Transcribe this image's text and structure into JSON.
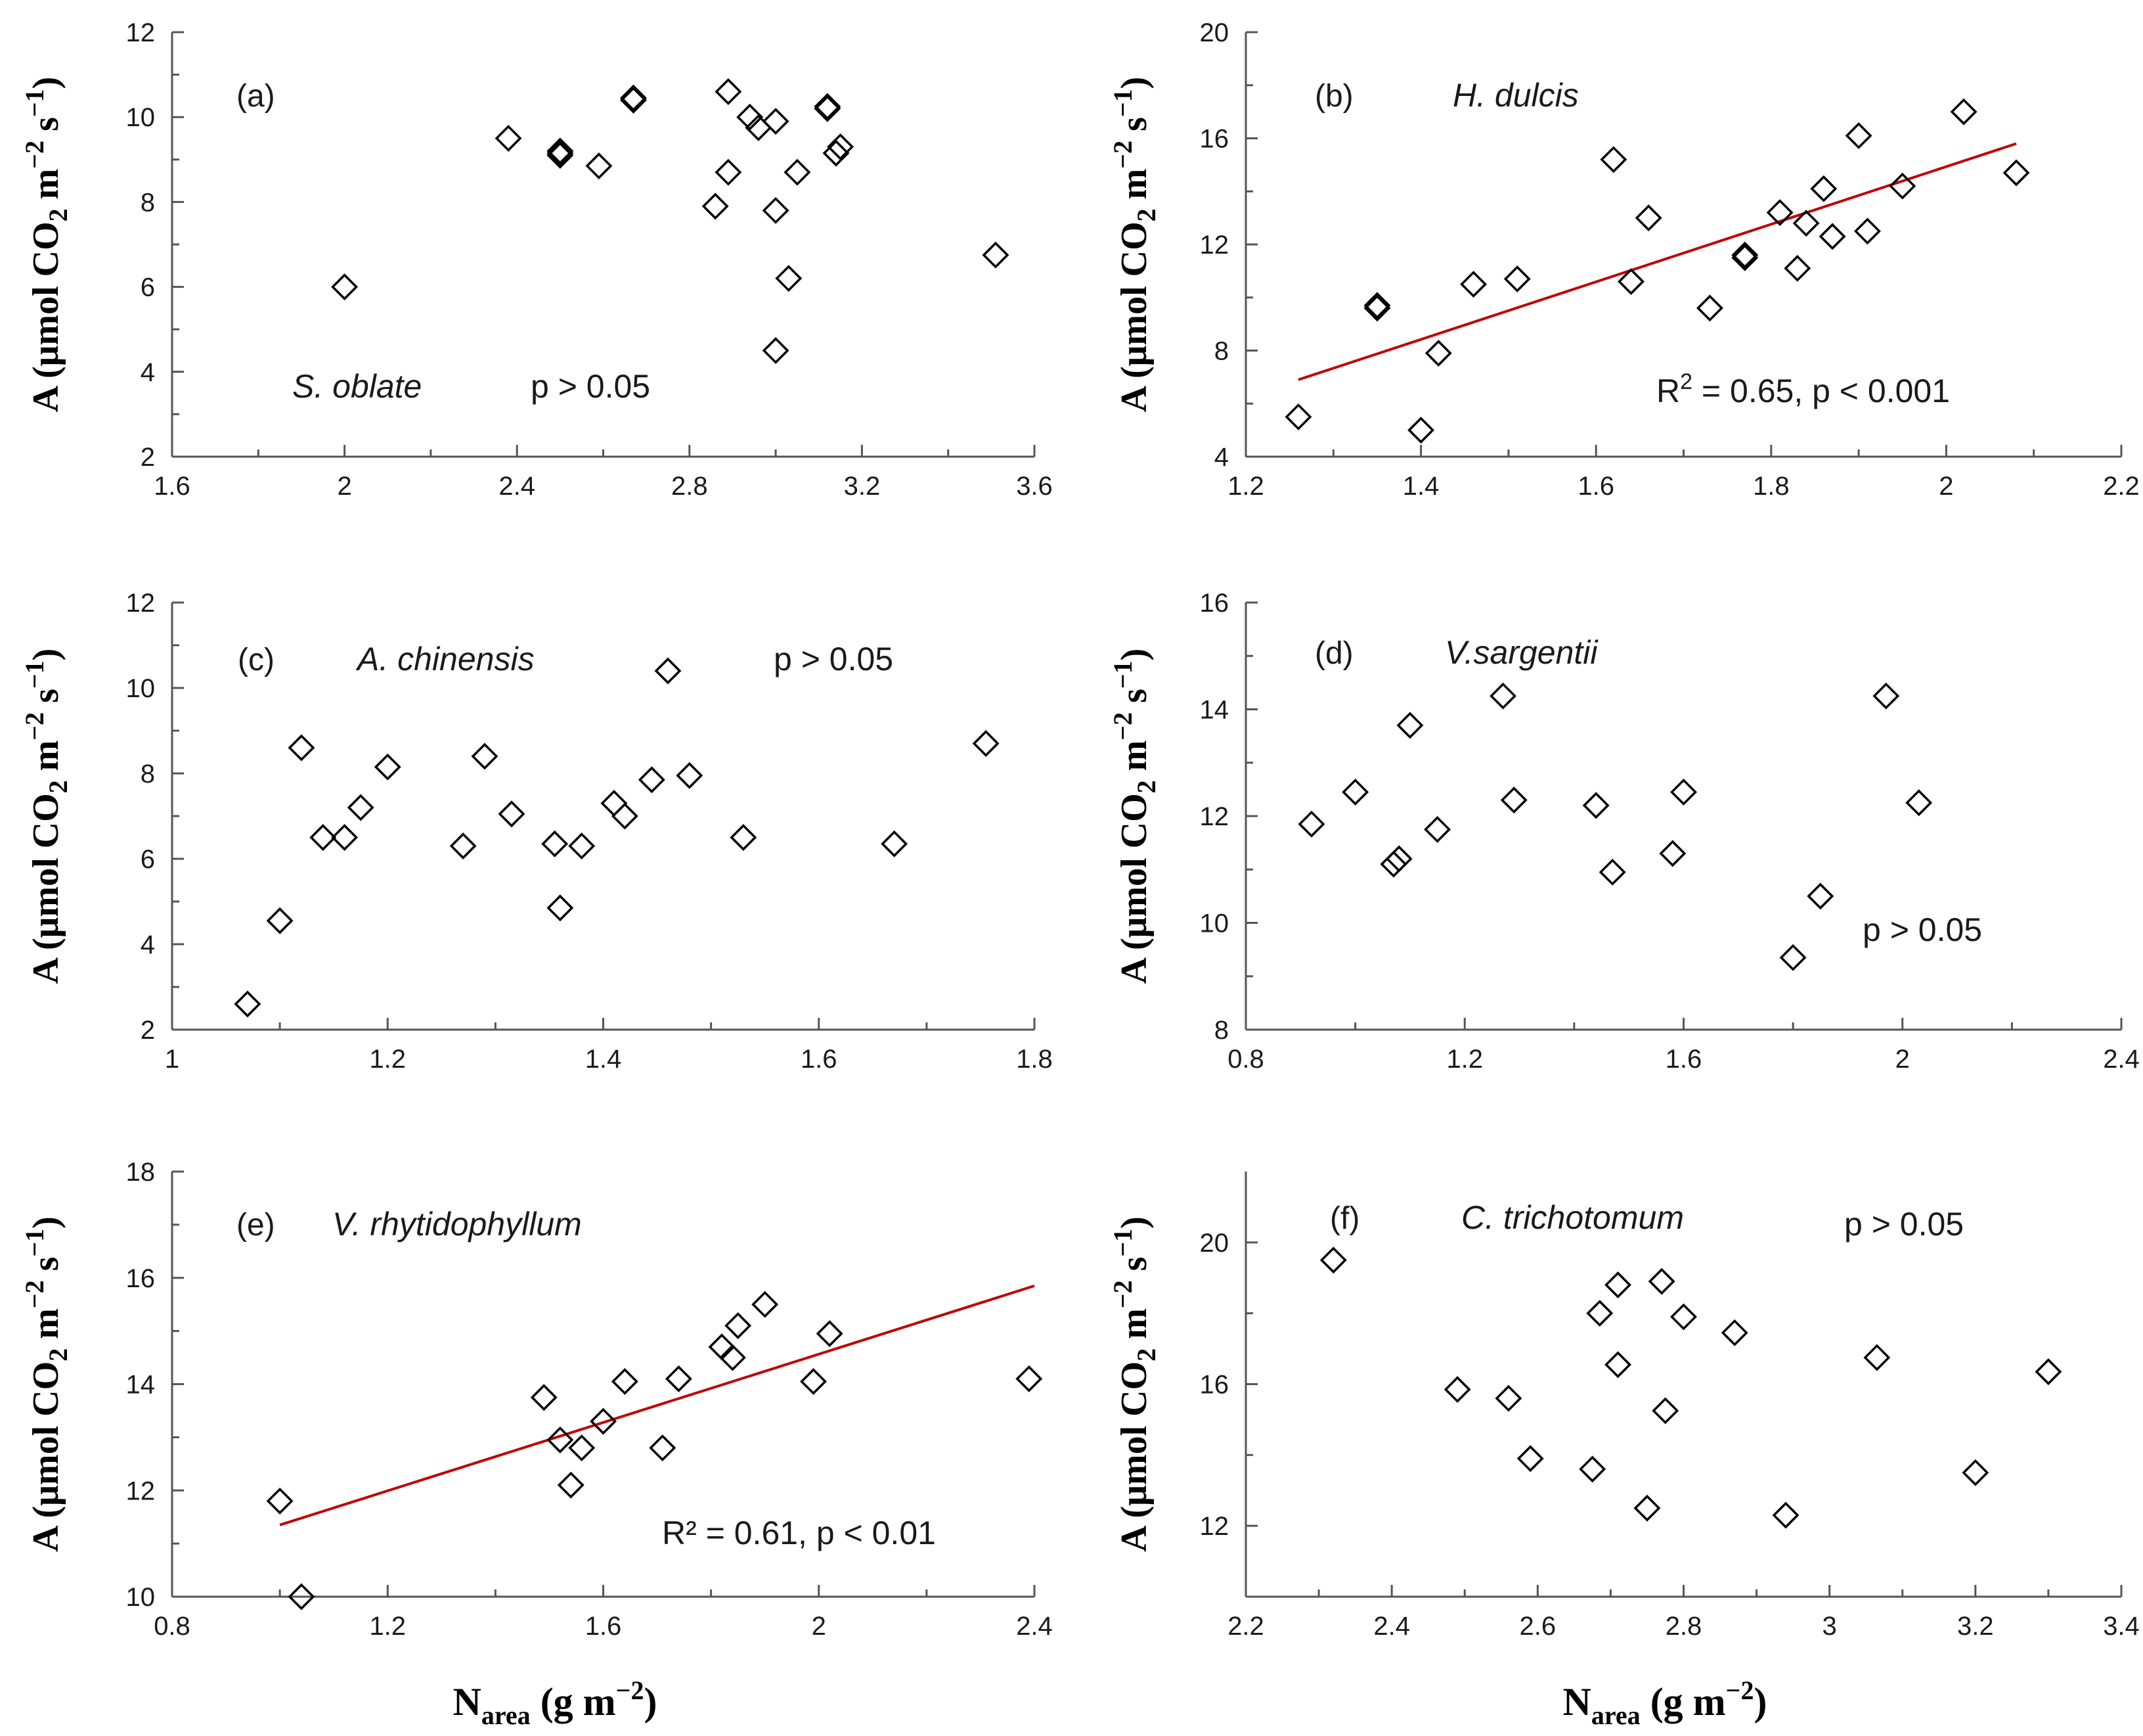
{
  "colors": {
    "axis": "#555555",
    "marker": "#000000",
    "fit_line": "#c00000",
    "text": "#1a1a1a"
  },
  "y_axis_label": {
    "prefix": "A (μmol CO",
    "sub": "2",
    "mid1": " m",
    "sup1": "−2",
    "mid2": " s",
    "sup2": "−1",
    "suffix": ")"
  },
  "x_axis_label": {
    "main": "N",
    "sub": "area",
    "unit": " (g m",
    "sup": "−2",
    "end": ")"
  },
  "chart_data": [
    {
      "panel": "(a)",
      "species": "S. oblate",
      "stats": "p > 0.05",
      "stats_html": null,
      "type": "scatter",
      "xlim": [
        1.6,
        3.6
      ],
      "ylim": [
        2,
        12
      ],
      "xticks": [
        1.6,
        2.0,
        2.4,
        2.8,
        3.2,
        3.6
      ],
      "xtick_labels": [
        "1.6",
        "2",
        "2.4",
        "2.8",
        "3.2",
        "3.6"
      ],
      "yticks": [
        2,
        4,
        6,
        8,
        10,
        12
      ],
      "ytick_labels": [
        "2",
        "4",
        "6",
        "8",
        "10",
        "12"
      ],
      "points": [
        [
          2.0,
          6.0
        ],
        [
          2.38,
          9.5
        ],
        [
          2.5,
          9.2
        ],
        [
          2.5,
          9.15
        ],
        [
          2.5,
          9.1
        ],
        [
          2.59,
          8.85
        ],
        [
          2.67,
          10.45
        ],
        [
          2.67,
          10.4
        ],
        [
          2.86,
          7.9
        ],
        [
          2.89,
          10.6
        ],
        [
          2.89,
          8.7
        ],
        [
          2.94,
          10.0
        ],
        [
          2.96,
          9.75
        ],
        [
          3.0,
          9.9
        ],
        [
          3.0,
          7.8
        ],
        [
          3.0,
          4.5
        ],
        [
          3.03,
          6.2
        ],
        [
          3.05,
          8.7
        ],
        [
          3.12,
          10.25
        ],
        [
          3.12,
          10.2
        ],
        [
          3.14,
          9.15
        ],
        [
          3.15,
          9.3
        ],
        [
          3.51,
          6.75
        ]
      ],
      "fit": null
    },
    {
      "panel": "(b)",
      "species": "H. dulcis",
      "stats": "R2 = 0.65, p < 0.001",
      "type": "scatter",
      "xlim": [
        1.2,
        2.2
      ],
      "ylim": [
        4,
        20
      ],
      "xticks": [
        1.2,
        1.4,
        1.6,
        1.8,
        2.0,
        2.2
      ],
      "xtick_labels": [
        "1.2",
        "1.4",
        "1.6",
        "1.8",
        "2",
        "2.2"
      ],
      "yticks": [
        4,
        8,
        12,
        16,
        20
      ],
      "ytick_labels": [
        "4",
        "8",
        "12",
        "16",
        "20"
      ],
      "points": [
        [
          1.26,
          5.5
        ],
        [
          1.35,
          9.7
        ],
        [
          1.35,
          9.6
        ],
        [
          1.4,
          5.0
        ],
        [
          1.42,
          7.9
        ],
        [
          1.46,
          10.5
        ],
        [
          1.51,
          10.7
        ],
        [
          1.62,
          15.2
        ],
        [
          1.64,
          10.6
        ],
        [
          1.66,
          13.0
        ],
        [
          1.73,
          9.6
        ],
        [
          1.77,
          11.6
        ],
        [
          1.77,
          11.5
        ],
        [
          1.81,
          13.2
        ],
        [
          1.83,
          11.1
        ],
        [
          1.84,
          12.8
        ],
        [
          1.86,
          14.1
        ],
        [
          1.87,
          12.3
        ],
        [
          1.9,
          16.1
        ],
        [
          1.91,
          12.5
        ],
        [
          1.95,
          14.2
        ],
        [
          2.02,
          17.0
        ],
        [
          2.08,
          14.7
        ]
      ],
      "fit": {
        "x": [
          1.26,
          2.08
        ],
        "y": [
          6.9,
          15.8
        ]
      }
    },
    {
      "panel": "(c)",
      "species": "A. chinensis",
      "stats": "p > 0.05",
      "type": "scatter",
      "xlim": [
        1.0,
        1.8
      ],
      "ylim": [
        2,
        12
      ],
      "xticks": [
        1.0,
        1.2,
        1.4,
        1.6,
        1.8
      ],
      "xtick_labels": [
        "1",
        "1.2",
        "1.4",
        "1.6",
        "1.8"
      ],
      "yticks": [
        2,
        4,
        6,
        8,
        10,
        12
      ],
      "ytick_labels": [
        "2",
        "4",
        "6",
        "8",
        "10",
        "12"
      ],
      "points": [
        [
          1.07,
          2.6
        ],
        [
          1.1,
          4.55
        ],
        [
          1.12,
          8.6
        ],
        [
          1.14,
          6.5
        ],
        [
          1.16,
          6.5
        ],
        [
          1.175,
          7.2
        ],
        [
          1.2,
          8.15
        ],
        [
          1.27,
          6.3
        ],
        [
          1.29,
          8.4
        ],
        [
          1.315,
          7.05
        ],
        [
          1.355,
          6.35
        ],
        [
          1.36,
          4.85
        ],
        [
          1.38,
          6.3
        ],
        [
          1.41,
          7.3
        ],
        [
          1.42,
          7.0
        ],
        [
          1.445,
          7.85
        ],
        [
          1.46,
          10.4
        ],
        [
          1.48,
          7.95
        ],
        [
          1.53,
          6.5
        ],
        [
          1.67,
          6.35
        ],
        [
          1.755,
          8.7
        ]
      ],
      "fit": null
    },
    {
      "panel": "(d)",
      "species": "V.sargentii",
      "stats": "p > 0.05",
      "type": "scatter",
      "xlim": [
        0.8,
        2.4
      ],
      "ylim": [
        8,
        16
      ],
      "xticks": [
        0.8,
        1.2,
        1.6,
        2.0,
        2.4
      ],
      "xtick_labels": [
        "0.8",
        "1.2",
        "1.6",
        "2",
        "2.4"
      ],
      "yticks": [
        8,
        10,
        12,
        14,
        16
      ],
      "ytick_labels": [
        "8",
        "10",
        "12",
        "14",
        "16"
      ],
      "points": [
        [
          0.92,
          11.85
        ],
        [
          1.0,
          12.45
        ],
        [
          1.07,
          11.1
        ],
        [
          1.08,
          11.2
        ],
        [
          1.1,
          13.7
        ],
        [
          1.15,
          11.75
        ],
        [
          1.27,
          14.25
        ],
        [
          1.29,
          12.3
        ],
        [
          1.44,
          12.2
        ],
        [
          1.47,
          10.95
        ],
        [
          1.58,
          11.3
        ],
        [
          1.6,
          12.45
        ],
        [
          1.8,
          9.35
        ],
        [
          1.85,
          10.5
        ],
        [
          1.97,
          14.25
        ],
        [
          2.03,
          12.25
        ]
      ],
      "fit": null
    },
    {
      "panel": "(e)",
      "species": "V. rhytidophyllum",
      "stats": "R² = 0.61, p < 0.01",
      "type": "scatter",
      "xlim": [
        0.8,
        2.4
      ],
      "ylim": [
        10,
        18
      ],
      "xticks": [
        0.8,
        1.2,
        1.6,
        2.0,
        2.4
      ],
      "xtick_labels": [
        "0.8",
        "1.2",
        "1.6",
        "2",
        "2.4"
      ],
      "yticks": [
        10,
        12,
        14,
        16,
        18
      ],
      "ytick_labels": [
        "10",
        "12",
        "14",
        "16",
        "18"
      ],
      "points": [
        [
          1.0,
          11.8
        ],
        [
          1.04,
          10.0
        ],
        [
          1.49,
          13.75
        ],
        [
          1.52,
          12.95
        ],
        [
          1.54,
          12.1
        ],
        [
          1.56,
          12.8
        ],
        [
          1.6,
          13.3
        ],
        [
          1.64,
          14.05
        ],
        [
          1.71,
          12.8
        ],
        [
          1.74,
          14.1
        ],
        [
          1.82,
          14.7
        ],
        [
          1.84,
          14.5
        ],
        [
          1.85,
          15.1
        ],
        [
          1.9,
          15.5
        ],
        [
          1.99,
          14.05
        ],
        [
          2.02,
          14.95
        ],
        [
          2.39,
          14.1
        ]
      ],
      "fit": {
        "x": [
          1.0,
          2.4
        ],
        "y": [
          11.35,
          15.85
        ]
      }
    },
    {
      "panel": "(f)",
      "species": "C. trichotomum",
      "stats": "p > 0.05",
      "type": "scatter",
      "xlim": [
        2.2,
        3.4
      ],
      "ylim": [
        10,
        22
      ],
      "xticks": [
        2.2,
        2.4,
        2.6,
        2.8,
        3.0,
        3.2,
        3.4
      ],
      "xtick_labels": [
        "2.2",
        "2.4",
        "2.6",
        "2.8",
        "3",
        "3.2",
        "3.4"
      ],
      "yticks": [
        12,
        16,
        20
      ],
      "ytick_labels": [
        "12",
        "16",
        "20"
      ],
      "points": [
        [
          2.32,
          19.5
        ],
        [
          2.49,
          15.85
        ],
        [
          2.56,
          15.6
        ],
        [
          2.59,
          13.9
        ],
        [
          2.675,
          13.6
        ],
        [
          2.685,
          18.0
        ],
        [
          2.71,
          18.8
        ],
        [
          2.71,
          16.55
        ],
        [
          2.75,
          12.5
        ],
        [
          2.77,
          18.9
        ],
        [
          2.775,
          15.25
        ],
        [
          2.8,
          17.9
        ],
        [
          2.87,
          17.45
        ],
        [
          2.94,
          12.3
        ],
        [
          3.065,
          16.75
        ],
        [
          3.2,
          13.5
        ],
        [
          3.3,
          16.35
        ]
      ],
      "fit": null
    }
  ]
}
